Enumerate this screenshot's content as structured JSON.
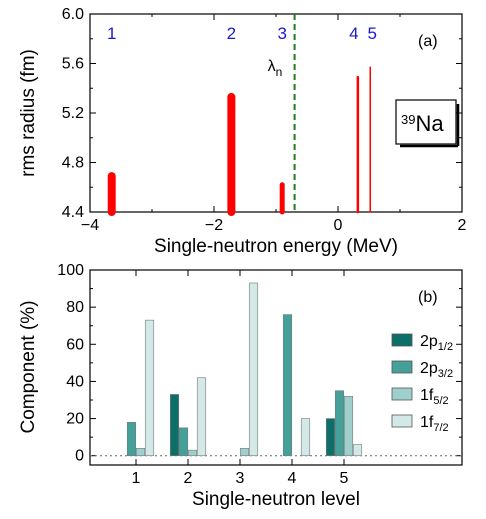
{
  "chart_data": [
    {
      "type": "bar",
      "panel_label": "(a)",
      "nucleus_label": "Na",
      "nucleus_mass": "39",
      "xlabel": "Single-neutron energy (MeV)",
      "ylabel": "rms radius (fm)",
      "xlim": [
        -4,
        2
      ],
      "ylim": [
        4.4,
        6.0
      ],
      "xticks": [
        "−4",
        "−2",
        "0",
        "2"
      ],
      "yticks": [
        "4.4",
        "4.8",
        "5.2",
        "5.6",
        "6.0"
      ],
      "fermi_label": "λ",
      "fermi_subscript": "n",
      "fermi_energy": -0.7,
      "fermi_color": "#1e7d1e",
      "bar_color": "#ff0000",
      "levels": [
        {
          "label": "1",
          "energy": -3.65,
          "radius": 4.69,
          "weight": 8
        },
        {
          "label": "2",
          "energy": -1.72,
          "radius": 5.33,
          "weight": 8
        },
        {
          "label": "3",
          "energy": -0.9,
          "radius": 4.62,
          "weight": 5
        },
        {
          "label": "4",
          "energy": 0.32,
          "radius": 5.49,
          "weight": 2.5
        },
        {
          "label": "5",
          "energy": 0.52,
          "radius": 5.57,
          "weight": 1.5
        }
      ]
    },
    {
      "type": "bar",
      "panel_label": "(b)",
      "xlabel": "Single-neutron level",
      "ylabel": "Component (%)",
      "ylim": [
        -5,
        100
      ],
      "yticks": [
        "0",
        "20",
        "40",
        "60",
        "80",
        "100"
      ],
      "categories": [
        "1",
        "2",
        "3",
        "4",
        "5"
      ],
      "series": [
        {
          "name": "2p",
          "sub": "1/2",
          "color": "#0e6e68",
          "values": [
            0,
            33,
            0,
            0,
            20
          ]
        },
        {
          "name": "2p",
          "sub": "3/2",
          "color": "#45a09a",
          "values": [
            18,
            15,
            0,
            76,
            35
          ]
        },
        {
          "name": "1f",
          "sub": "5/2",
          "color": "#9fcfcc",
          "values": [
            4,
            3,
            4,
            0,
            32
          ]
        },
        {
          "name": "1f",
          "sub": "7/2",
          "color": "#d2e9e7",
          "values": [
            73,
            42,
            93,
            20,
            6
          ]
        }
      ]
    }
  ]
}
